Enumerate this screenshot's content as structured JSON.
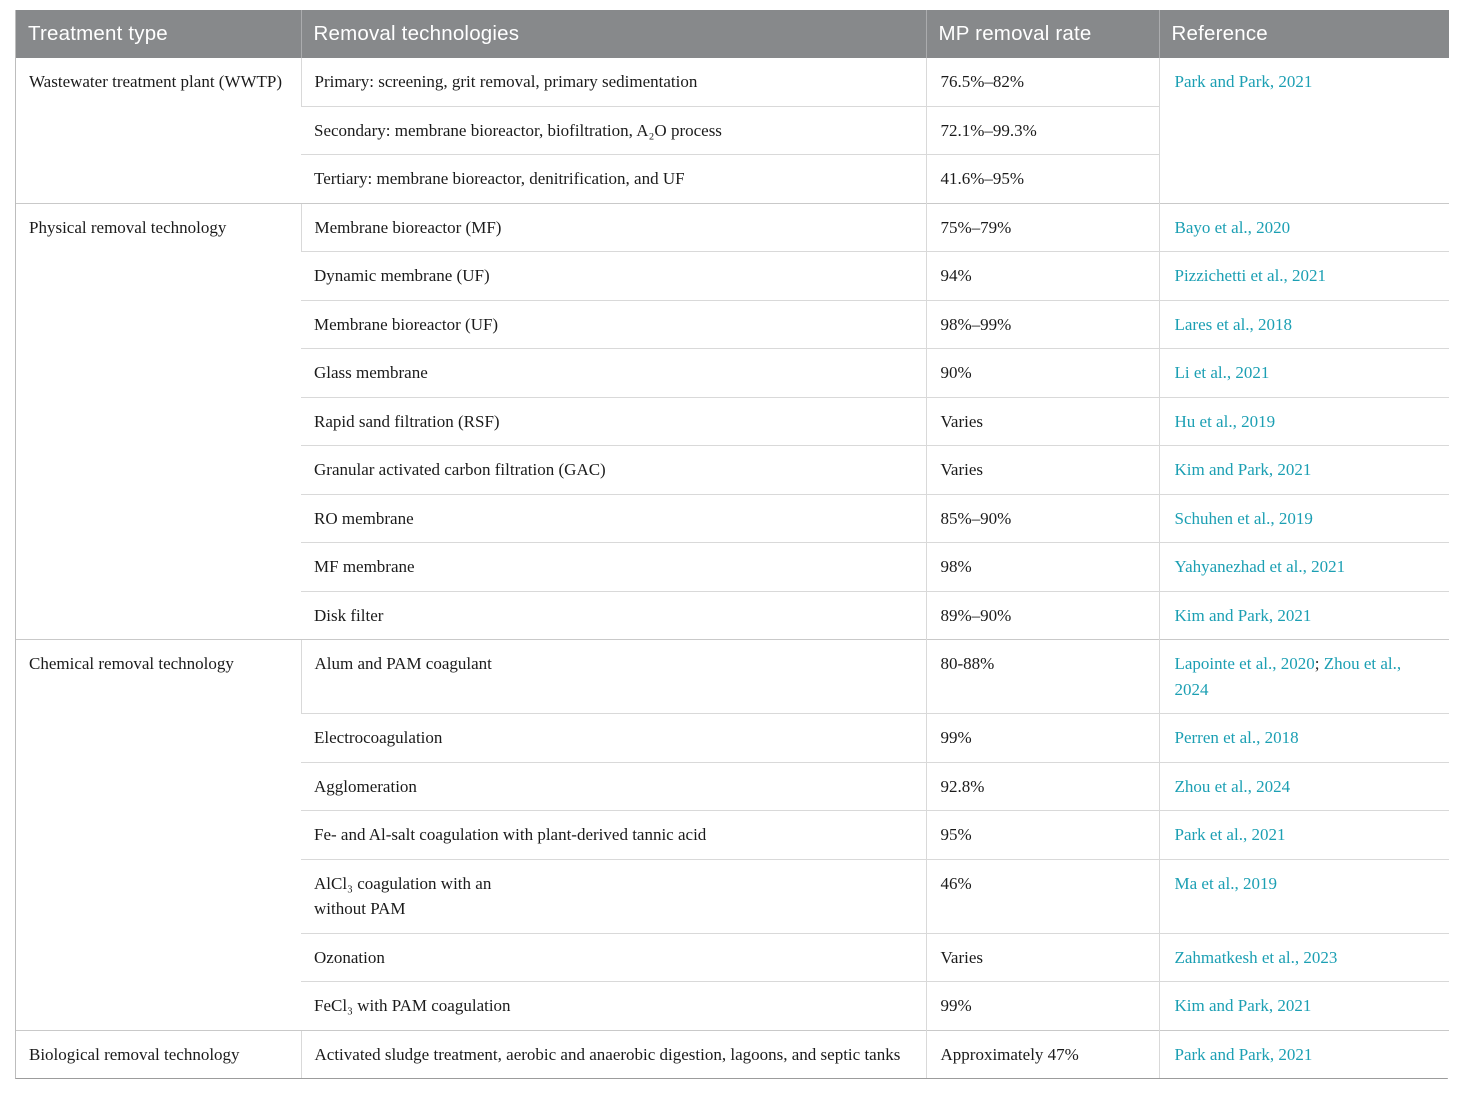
{
  "colors": {
    "header_bg": "#87898b",
    "header_text": "#ffffff",
    "body_text": "#1b1b1b",
    "link": "#1b9fb3",
    "grid_line": "#d9d9d9",
    "group_line": "#c9c9c9",
    "outer_border": "#bdbdbd",
    "bottom_border": "#9c9c9c"
  },
  "table": {
    "columns": [
      "Treatment type",
      "Removal technologies",
      "MP removal rate",
      "Reference"
    ],
    "reference_separator": "; ",
    "groups": [
      {
        "treatment_type": "Wastewater treatment plant (WWTP)",
        "merged_references": [
          "Park and Park, 2021"
        ],
        "rows": [
          {
            "technology": "Primary: screening, grit removal, primary sedimentation",
            "rate": "76.5%–82%"
          },
          {
            "technology": "Secondary: membrane bioreactor, biofiltration, A₂O process",
            "rate": "72.1%–99.3%"
          },
          {
            "technology": "Tertiary: membrane bioreactor, denitrification, and UF",
            "rate": "41.6%–95%"
          }
        ]
      },
      {
        "treatment_type": "Physical removal technology",
        "rows": [
          {
            "technology": "Membrane bioreactor (MF)",
            "rate": "75%–79%",
            "references": [
              "Bayo et al., 2020"
            ]
          },
          {
            "technology": "Dynamic membrane (UF)",
            "rate": "94%",
            "references": [
              "Pizzichetti et al., 2021"
            ]
          },
          {
            "technology": "Membrane bioreactor (UF)",
            "rate": "98%–99%",
            "references": [
              "Lares et al., 2018"
            ]
          },
          {
            "technology": "Glass membrane",
            "rate": "90%",
            "references": [
              "Li et al., 2021"
            ]
          },
          {
            "technology": "Rapid sand filtration (RSF)",
            "rate": "Varies",
            "references": [
              "Hu et al., 2019"
            ]
          },
          {
            "technology": "Granular activated carbon filtration (GAC)",
            "rate": "Varies",
            "references": [
              "Kim and Park, 2021"
            ]
          },
          {
            "technology": "RO membrane",
            "rate": "85%–90%",
            "references": [
              "Schuhen et al., 2019"
            ]
          },
          {
            "technology": "MF membrane",
            "rate": "98%",
            "references": [
              "Yahyanezhad et al., 2021"
            ]
          },
          {
            "technology": "Disk filter",
            "rate": "89%–90%",
            "references": [
              "Kim and Park, 2021"
            ]
          }
        ]
      },
      {
        "treatment_type": "Chemical removal technology",
        "rows": [
          {
            "technology": "Alum and PAM coagulant",
            "rate": "80-88%",
            "references": [
              "Lapointe et al., 2020",
              "Zhou et al., 2024"
            ]
          },
          {
            "technology": "Electrocoagulation",
            "rate": "99%",
            "references": [
              "Perren et al., 2018"
            ]
          },
          {
            "technology": "Agglomeration",
            "rate": "92.8%",
            "references": [
              "Zhou et al., 2024"
            ]
          },
          {
            "technology": "Fe- and Al-salt coagulation with plant-derived tannic acid",
            "rate": "95%",
            "references": [
              "Park et al., 2021"
            ]
          },
          {
            "technology": "AlCl₃ coagulation with an\nwithout PAM",
            "rate": "46%",
            "references": [
              "Ma et al., 2019"
            ]
          },
          {
            "technology": "Ozonation",
            "rate": "Varies",
            "references": [
              "Zahmatkesh et al., 2023"
            ]
          },
          {
            "technology": "FeCl₃ with PAM coagulation",
            "rate": "99%",
            "references": [
              "Kim and Park, 2021"
            ]
          }
        ]
      },
      {
        "treatment_type": "Biological removal technology",
        "rows": [
          {
            "technology": "Activated sludge treatment, aerobic and anaerobic digestion, lagoons, and septic tanks",
            "rate": "Approximately 47%",
            "references": [
              "Park and Park, 2021"
            ]
          }
        ]
      }
    ]
  }
}
